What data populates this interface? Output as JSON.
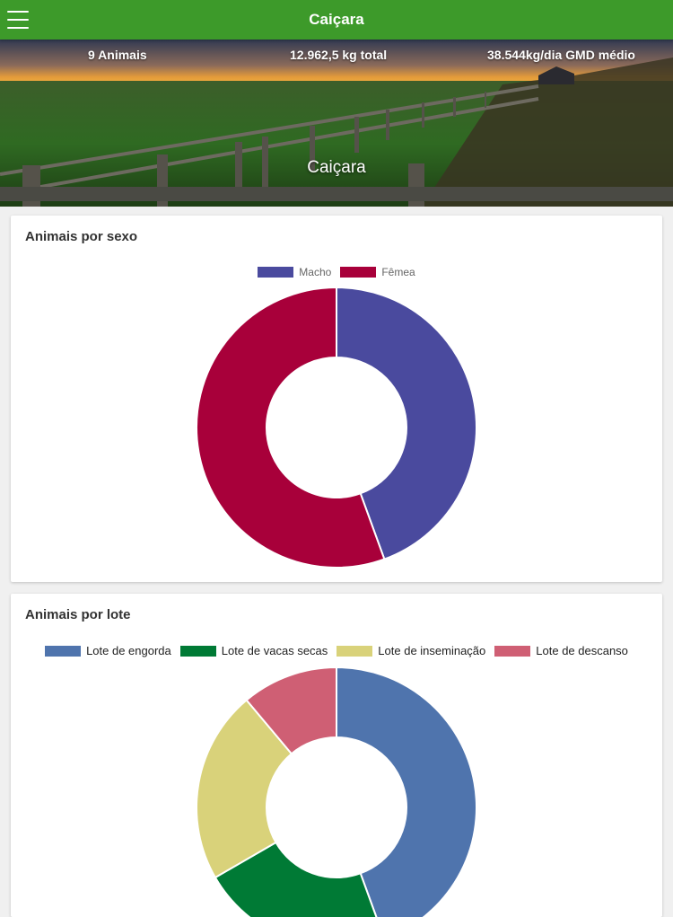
{
  "app": {
    "title": "Caiçara"
  },
  "hero": {
    "animals": "9 Animais",
    "total_weight": "12.962,5 kg total",
    "gmd": "38.544kg/dia GMD médio",
    "farm_name": "Caiçara"
  },
  "colors": {
    "appbar": "#3d9a2a",
    "macho": "#4a4a9e",
    "femea": "#a8003a",
    "engorda": "#4f74ad",
    "vacas_secas": "#007a35",
    "inseminacao": "#d9d27a",
    "descanso": "#cf5f74"
  },
  "chart_data": [
    {
      "type": "doughnut",
      "title": "Animais por sexo",
      "categories": [
        "Macho",
        "Fêmea"
      ],
      "values": [
        4,
        5
      ],
      "colors": [
        "#4a4a9e",
        "#a8003a"
      ],
      "legend": "top-center"
    },
    {
      "type": "doughnut",
      "title": "Animais por lote",
      "categories": [
        "Lote de engorda",
        "Lote de vacas secas",
        "Lote de inseminação",
        "Lote de descanso"
      ],
      "values": [
        4,
        2,
        2,
        1
      ],
      "colors": [
        "#4f74ad",
        "#007a35",
        "#d9d27a",
        "#cf5f74"
      ],
      "legend": "top-center"
    }
  ]
}
